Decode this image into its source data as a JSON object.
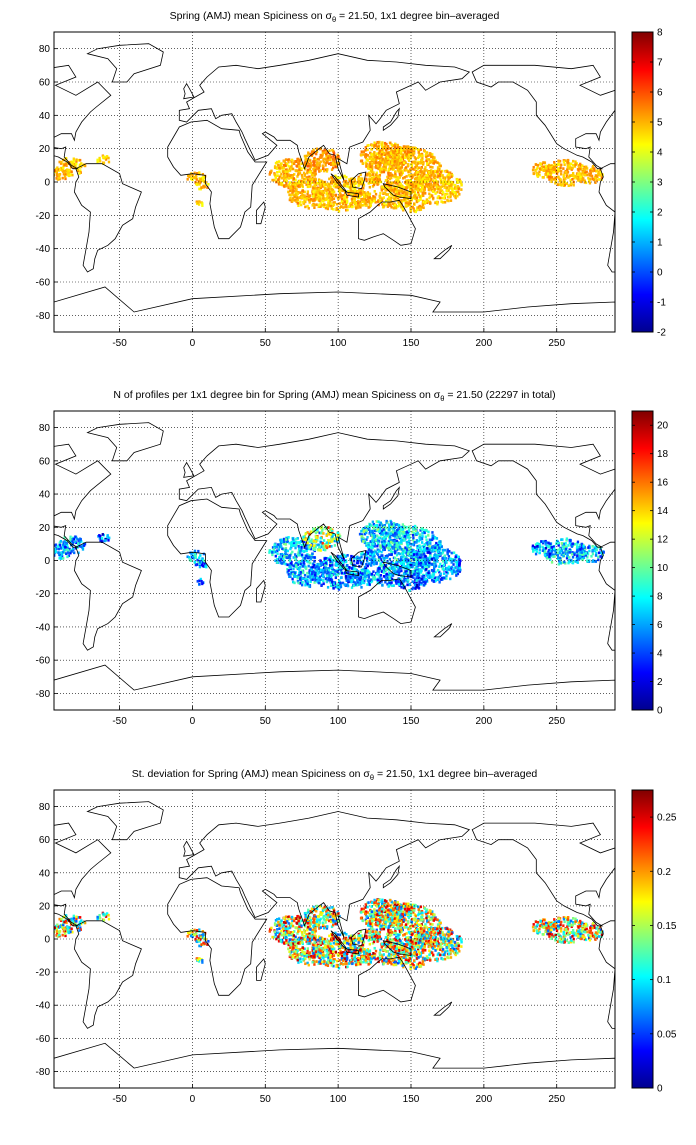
{
  "panels": [
    {
      "id": "mean",
      "title_main": "Spring (AMJ) mean Spiciness on σ",
      "title_sub": "θ",
      "title_tail": " = 21.50, 1x1 degree bin–averaged",
      "colorbar_ticks": [
        "-2",
        "-1",
        "0",
        "1",
        "2",
        "3",
        "4",
        "5",
        "6",
        "7",
        "8"
      ]
    },
    {
      "id": "count",
      "title_main": "N of profiles per 1x1 degree bin for Spring (AMJ) mean Spiciness on σ",
      "title_sub": "θ",
      "title_tail": " = 21.50 (22297 in total)",
      "colorbar_ticks": [
        "0",
        "2",
        "4",
        "6",
        "8",
        "10",
        "12",
        "14",
        "16",
        "18",
        "20"
      ]
    },
    {
      "id": "std",
      "title_main": "St. deviation for Spring (AMJ) mean Spiciness on σ",
      "title_sub": "θ",
      "title_tail": " = 21.50, 1x1 degree bin–averaged",
      "colorbar_ticks": [
        "0",
        "0.05",
        "0.1",
        "0.15",
        "0.2",
        "0.25"
      ]
    }
  ],
  "map_axes": {
    "x_ticks": [
      "-50",
      "0",
      "50",
      "100",
      "150",
      "200",
      "250"
    ],
    "y_ticks": [
      "80",
      "60",
      "40",
      "20",
      "0",
      "-20",
      "-40",
      "-60",
      "-80"
    ]
  },
  "colors": {
    "ocean": "#ffffff",
    "coast": "#000000",
    "grid": "#000000"
  }
}
